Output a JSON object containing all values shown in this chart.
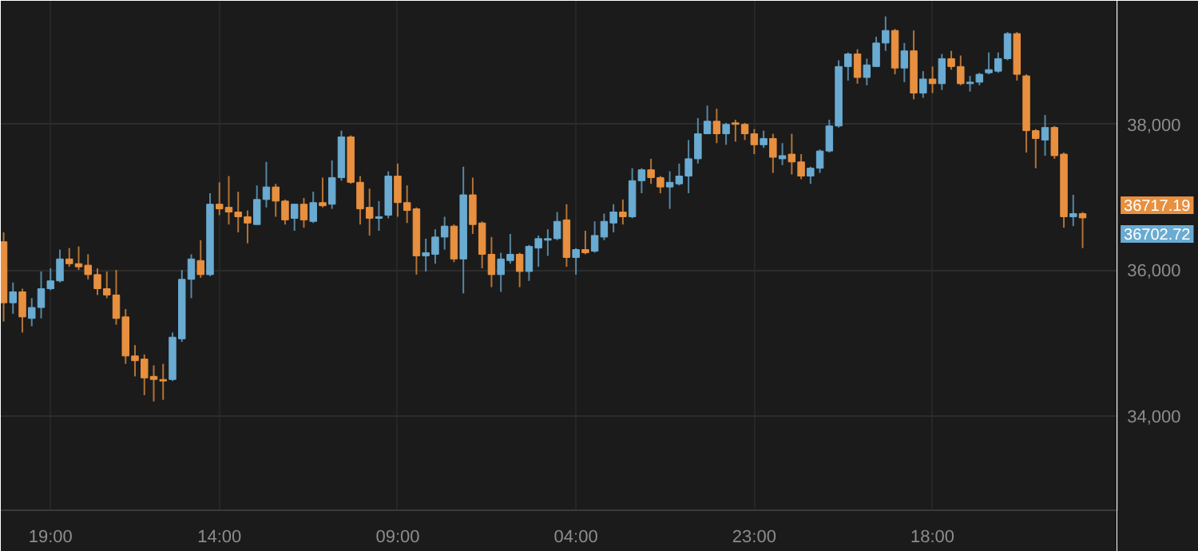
{
  "chart_data": {
    "type": "candlestick",
    "categories": [
      null,
      null,
      null,
      null,
      null,
      "19:00",
      null,
      null,
      null,
      null,
      null,
      null,
      null,
      null,
      null,
      null,
      null,
      null,
      null,
      null,
      null,
      null,
      null,
      "14:00",
      null,
      null,
      null,
      null,
      null,
      null,
      null,
      null,
      null,
      null,
      null,
      null,
      null,
      null,
      null,
      null,
      null,
      null,
      "09:00",
      null,
      null,
      null,
      null,
      null,
      null,
      null,
      null,
      null,
      null,
      null,
      null,
      null,
      null,
      null,
      null,
      null,
      null,
      "04:00",
      null,
      null,
      null,
      null,
      null,
      null,
      null,
      null,
      null,
      null,
      null,
      null,
      null,
      null,
      null,
      null,
      null,
      null,
      "23:00",
      null,
      null,
      null,
      null,
      null,
      null,
      null,
      null,
      null,
      null,
      null,
      null,
      null,
      null,
      null,
      null,
      null,
      null,
      "18:00",
      null,
      null,
      null,
      null,
      null,
      null,
      null,
      null,
      null,
      null,
      null,
      null,
      null,
      null,
      null,
      null
    ],
    "ohlc": [
      [
        36389,
        36518,
        35293,
        35551
      ],
      [
        35551,
        35830,
        35400,
        35701
      ],
      [
        35701,
        35744,
        35142,
        35357
      ],
      [
        35336,
        35615,
        35228,
        35486
      ],
      [
        35486,
        35981,
        35336,
        35744
      ],
      [
        35744,
        36024,
        35723,
        35852
      ],
      [
        35852,
        36282,
        35830,
        36153
      ],
      [
        36153,
        36303,
        36045,
        36088
      ],
      [
        36088,
        36325,
        36002,
        36045
      ],
      [
        36067,
        36217,
        35873,
        35938
      ],
      [
        35938,
        36024,
        35658,
        35744
      ],
      [
        35744,
        35981,
        35615,
        35658
      ],
      [
        35658,
        36002,
        35250,
        35336
      ],
      [
        35357,
        35465,
        34712,
        34820
      ],
      [
        34820,
        34970,
        34540,
        34755
      ],
      [
        34777,
        34841,
        34282,
        34519
      ],
      [
        34540,
        34691,
        34196,
        34497
      ],
      [
        34497,
        34712,
        34218,
        34476
      ],
      [
        34497,
        35142,
        34476,
        35078
      ],
      [
        35056,
        36002,
        35013,
        35873
      ],
      [
        35873,
        36217,
        35615,
        36153
      ],
      [
        36131,
        36411,
        35895,
        35938
      ],
      [
        35938,
        37056,
        35916,
        36905
      ],
      [
        36905,
        37206,
        36755,
        36841
      ],
      [
        36862,
        37292,
        36626,
        36798
      ],
      [
        36798,
        37077,
        36518,
        36733
      ],
      [
        36733,
        36819,
        36368,
        36647
      ],
      [
        36626,
        37163,
        36626,
        36970
      ],
      [
        36970,
        37486,
        36862,
        37142
      ],
      [
        37142,
        37185,
        36733,
        36948
      ],
      [
        36948,
        36970,
        36626,
        36690
      ],
      [
        36712,
        36905,
        36540,
        36905
      ],
      [
        36905,
        36991,
        36583,
        36690
      ],
      [
        36669,
        37077,
        36647,
        36927
      ],
      [
        36927,
        37271,
        36862,
        36884
      ],
      [
        36905,
        37507,
        36841,
        37271
      ],
      [
        37271,
        37916,
        37228,
        37830
      ],
      [
        37830,
        37851,
        37185,
        37206
      ],
      [
        37206,
        37292,
        36626,
        36841
      ],
      [
        36862,
        37120,
        36475,
        36712
      ],
      [
        36712,
        36948,
        36540,
        36733
      ],
      [
        36755,
        37357,
        36712,
        37292
      ],
      [
        37292,
        37464,
        36733,
        36927
      ],
      [
        36927,
        37163,
        36647,
        36819
      ],
      [
        36841,
        36862,
        35938,
        36196
      ],
      [
        36196,
        36432,
        35981,
        36239
      ],
      [
        36217,
        36561,
        36088,
        36454
      ],
      [
        36454,
        36733,
        36282,
        36604
      ],
      [
        36604,
        36626,
        36110,
        36153
      ],
      [
        36153,
        37421,
        35680,
        37034
      ],
      [
        37034,
        37271,
        36497,
        36626
      ],
      [
        36647,
        36669,
        36024,
        36217
      ],
      [
        36217,
        36454,
        35766,
        35938
      ],
      [
        35938,
        36239,
        35701,
        36153
      ],
      [
        36131,
        36497,
        36088,
        36217
      ],
      [
        36217,
        36239,
        35766,
        35981
      ],
      [
        35981,
        36346,
        35852,
        36325
      ],
      [
        36303,
        36475,
        36045,
        36432
      ],
      [
        36411,
        36561,
        36196,
        36432
      ],
      [
        36432,
        36798,
        36411,
        36669
      ],
      [
        36690,
        36905,
        36045,
        36174
      ],
      [
        36174,
        36303,
        35938,
        36282
      ],
      [
        36282,
        36540,
        36217,
        36239
      ],
      [
        36260,
        36669,
        36239,
        36475
      ],
      [
        36454,
        36776,
        36411,
        36669
      ],
      [
        36647,
        36905,
        36518,
        36798
      ],
      [
        36798,
        36970,
        36626,
        36733
      ],
      [
        36733,
        37400,
        36712,
        37228
      ],
      [
        37228,
        37400,
        37056,
        37378
      ],
      [
        37378,
        37529,
        37185,
        37271
      ],
      [
        37271,
        37292,
        37056,
        37142
      ],
      [
        37142,
        37357,
        36841,
        37206
      ],
      [
        37185,
        37464,
        37163,
        37292
      ],
      [
        37292,
        37787,
        37056,
        37529
      ],
      [
        37529,
        38088,
        37464,
        37873
      ],
      [
        37873,
        38260,
        37873,
        38045
      ],
      [
        38045,
        38217,
        37744,
        37873
      ],
      [
        37873,
        38023,
        37722,
        38002
      ],
      [
        38023,
        38066,
        37765,
        38002
      ],
      [
        38002,
        38023,
        37787,
        37873
      ],
      [
        37873,
        37937,
        37593,
        37722
      ],
      [
        37722,
        37916,
        37679,
        37808
      ],
      [
        37808,
        37873,
        37335,
        37550
      ],
      [
        37529,
        37744,
        37443,
        37572
      ],
      [
        37593,
        37873,
        37314,
        37486
      ],
      [
        37486,
        37593,
        37249,
        37292
      ],
      [
        37292,
        37421,
        37185,
        37400
      ],
      [
        37400,
        37658,
        37335,
        37636
      ],
      [
        37636,
        38066,
        37615,
        37980
      ],
      [
        37980,
        38883,
        37959,
        38797
      ],
      [
        38797,
        38991,
        38604,
        38969
      ],
      [
        38969,
        39034,
        38561,
        38647
      ],
      [
        38647,
        38905,
        38539,
        38819
      ],
      [
        38797,
        39206,
        38797,
        39120
      ],
      [
        39120,
        39485,
        39012,
        39292
      ],
      [
        39292,
        39313,
        38690,
        38776
      ],
      [
        38776,
        39120,
        38582,
        39012
      ],
      [
        39012,
        39292,
        38346,
        38432
      ],
      [
        38432,
        38733,
        38367,
        38625
      ],
      [
        38625,
        38797,
        38432,
        38561
      ],
      [
        38561,
        38969,
        38475,
        38905
      ],
      [
        38905,
        39012,
        38754,
        38797
      ],
      [
        38797,
        38948,
        38539,
        38561
      ],
      [
        38561,
        38668,
        38453,
        38582
      ],
      [
        38582,
        38711,
        38539,
        38690
      ],
      [
        38711,
        38991,
        38690,
        38754
      ],
      [
        38733,
        38991,
        38711,
        38905
      ],
      [
        38905,
        39270,
        38883,
        39249
      ],
      [
        39249,
        39270,
        38604,
        38690
      ],
      [
        38668,
        38690,
        37615,
        37916
      ],
      [
        37916,
        37937,
        37400,
        37808
      ],
      [
        37787,
        38131,
        37572,
        37959
      ],
      [
        37959,
        37980,
        37529,
        37572
      ],
      [
        37593,
        37615,
        36583,
        36733
      ],
      [
        36733,
        37034,
        36604,
        36776
      ],
      [
        36776,
        36798,
        36303,
        36717
      ]
    ],
    "colors": [
      "#e8903f",
      "#6aabd2",
      "#e8903f",
      "#6aabd2",
      "#6aabd2",
      "#6aabd2",
      "#6aabd2",
      "#e8903f",
      "#e8903f",
      "#e8903f",
      "#e8903f",
      "#e8903f",
      "#e8903f",
      "#e8903f",
      "#e8903f",
      "#e8903f",
      "#e8903f",
      "#e8903f",
      "#6aabd2",
      "#6aabd2",
      "#6aabd2",
      "#e8903f",
      "#6aabd2",
      "#e8903f",
      "#e8903f",
      "#e8903f",
      "#e8903f",
      "#6aabd2",
      "#6aabd2",
      "#e8903f",
      "#e8903f",
      "#6aabd2",
      "#e8903f",
      "#6aabd2",
      "#e8903f",
      "#6aabd2",
      "#6aabd2",
      "#e8903f",
      "#e8903f",
      "#e8903f",
      "#6aabd2",
      "#6aabd2",
      "#e8903f",
      "#e8903f",
      "#e8903f",
      "#6aabd2",
      "#6aabd2",
      "#6aabd2",
      "#e8903f",
      "#6aabd2",
      "#e8903f",
      "#e8903f",
      "#e8903f",
      "#6aabd2",
      "#6aabd2",
      "#e8903f",
      "#6aabd2",
      "#6aabd2",
      "#6aabd2",
      "#6aabd2",
      "#e8903f",
      "#6aabd2",
      "#e8903f",
      "#6aabd2",
      "#6aabd2",
      "#6aabd2",
      "#e8903f",
      "#6aabd2",
      "#6aabd2",
      "#e8903f",
      "#e8903f",
      "#6aabd2",
      "#6aabd2",
      "#6aabd2",
      "#6aabd2",
      "#6aabd2",
      "#e8903f",
      "#6aabd2",
      "#e8903f",
      "#e8903f",
      "#e8903f",
      "#6aabd2",
      "#e8903f",
      "#6aabd2",
      "#e8903f",
      "#e8903f",
      "#6aabd2",
      "#6aabd2",
      "#6aabd2",
      "#6aabd2",
      "#6aabd2",
      "#e8903f",
      "#6aabd2",
      "#6aabd2",
      "#6aabd2",
      "#e8903f",
      "#6aabd2",
      "#e8903f",
      "#6aabd2",
      "#e8903f",
      "#6aabd2",
      "#e8903f",
      "#e8903f",
      "#6aabd2",
      "#6aabd2",
      "#6aabd2",
      "#6aabd2",
      "#6aabd2",
      "#e8903f",
      "#e8903f",
      "#e8903f",
      "#6aabd2",
      "#e8903f",
      "#e8903f",
      "#6aabd2",
      "#e8903f"
    ],
    "ylim": [
      32700,
      39700
    ],
    "yticks": [
      {
        "value": 34000,
        "label": "34,000"
      },
      {
        "value": 36000,
        "label": "36,000"
      },
      {
        "value": 38000,
        "label": "38,000"
      }
    ],
    "grid": true,
    "annotations": [
      "36717.19",
      "36702.72"
    ]
  }
}
